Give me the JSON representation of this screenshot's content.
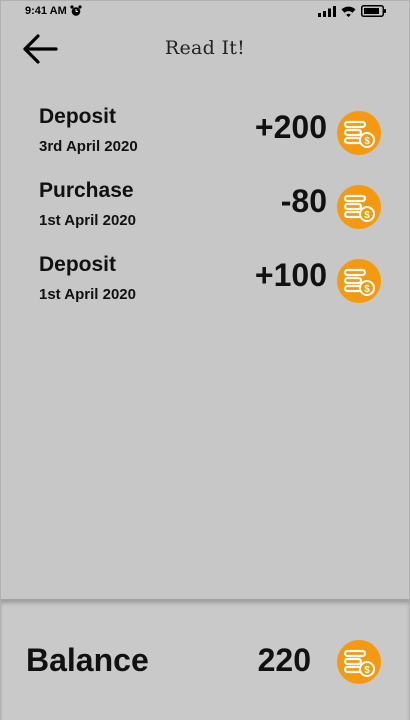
{
  "status_bar": {
    "time": "9:41 AM",
    "alarm_icon": "alarm-clock-icon",
    "signal_icon": "signal-icon",
    "wifi_icon": "wifi-icon",
    "battery_icon": "battery-icon"
  },
  "header": {
    "title": "Read It!",
    "back_icon": "arrow-left-icon"
  },
  "transactions": [
    {
      "name": "Deposit",
      "date": "3rd April 2020",
      "amount": "+200"
    },
    {
      "name": "Purchase",
      "date": "1st April 2020",
      "amount": "-80"
    },
    {
      "name": "Deposit",
      "date": "1st April 2020",
      "amount": "+100"
    }
  ],
  "balance": {
    "label": "Balance",
    "value": "220"
  },
  "colors": {
    "background": "#c7c7c7",
    "coin": "#f59a0e",
    "text": "#111111"
  },
  "coin_icon": "coins-icon"
}
